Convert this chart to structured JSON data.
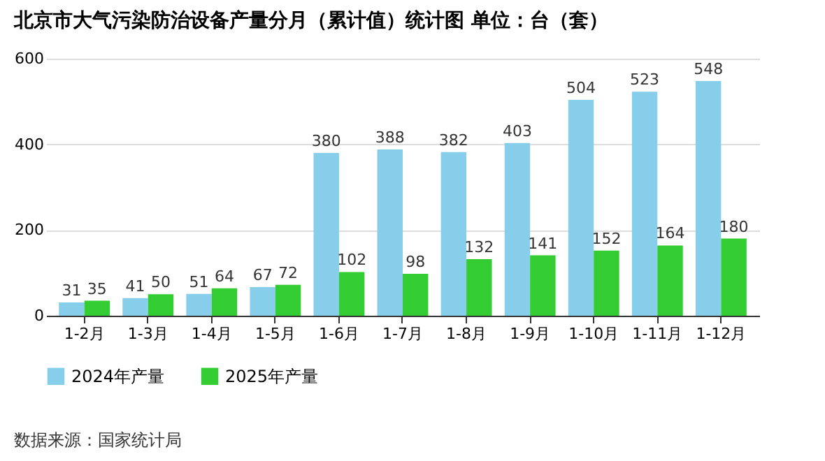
{
  "chart_data": {
    "type": "bar",
    "title": "北京市大气污染防治设备产量分月（累计值）统计图  单位：台（套）",
    "categories": [
      "1-2月",
      "1-3月",
      "1-4月",
      "1-5月",
      "1-6月",
      "1-7月",
      "1-8月",
      "1-9月",
      "1-10月",
      "1-11月",
      "1-12月"
    ],
    "series": [
      {
        "name": "2024年产量",
        "color": "#87ceeb",
        "values": [
          31,
          41,
          51,
          67,
          380,
          388,
          382,
          403,
          504,
          523,
          548
        ]
      },
      {
        "name": "2025年产量",
        "color": "#33cc33",
        "values": [
          35,
          50,
          64,
          72,
          102,
          98,
          132,
          141,
          152,
          164,
          180
        ]
      }
    ],
    "ylim": [
      0,
      600
    ],
    "yticks": [
      0,
      200,
      400,
      600
    ],
    "grid": "y",
    "legend": "bottom",
    "data_labels": true,
    "annotations": [
      "数据来源：国家统计局"
    ]
  }
}
